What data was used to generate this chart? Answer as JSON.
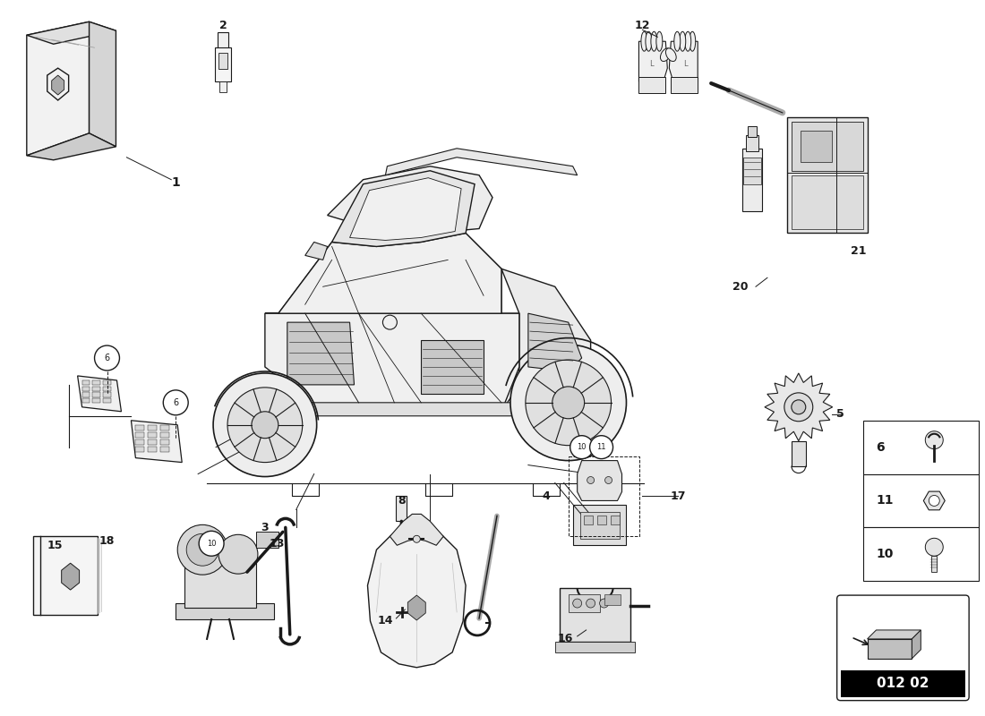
{
  "bg_color": "#ffffff",
  "line_color": "#1a1a1a",
  "plate_code": "012 02",
  "figsize": [
    11.0,
    8.0
  ],
  "dpi": 100
}
